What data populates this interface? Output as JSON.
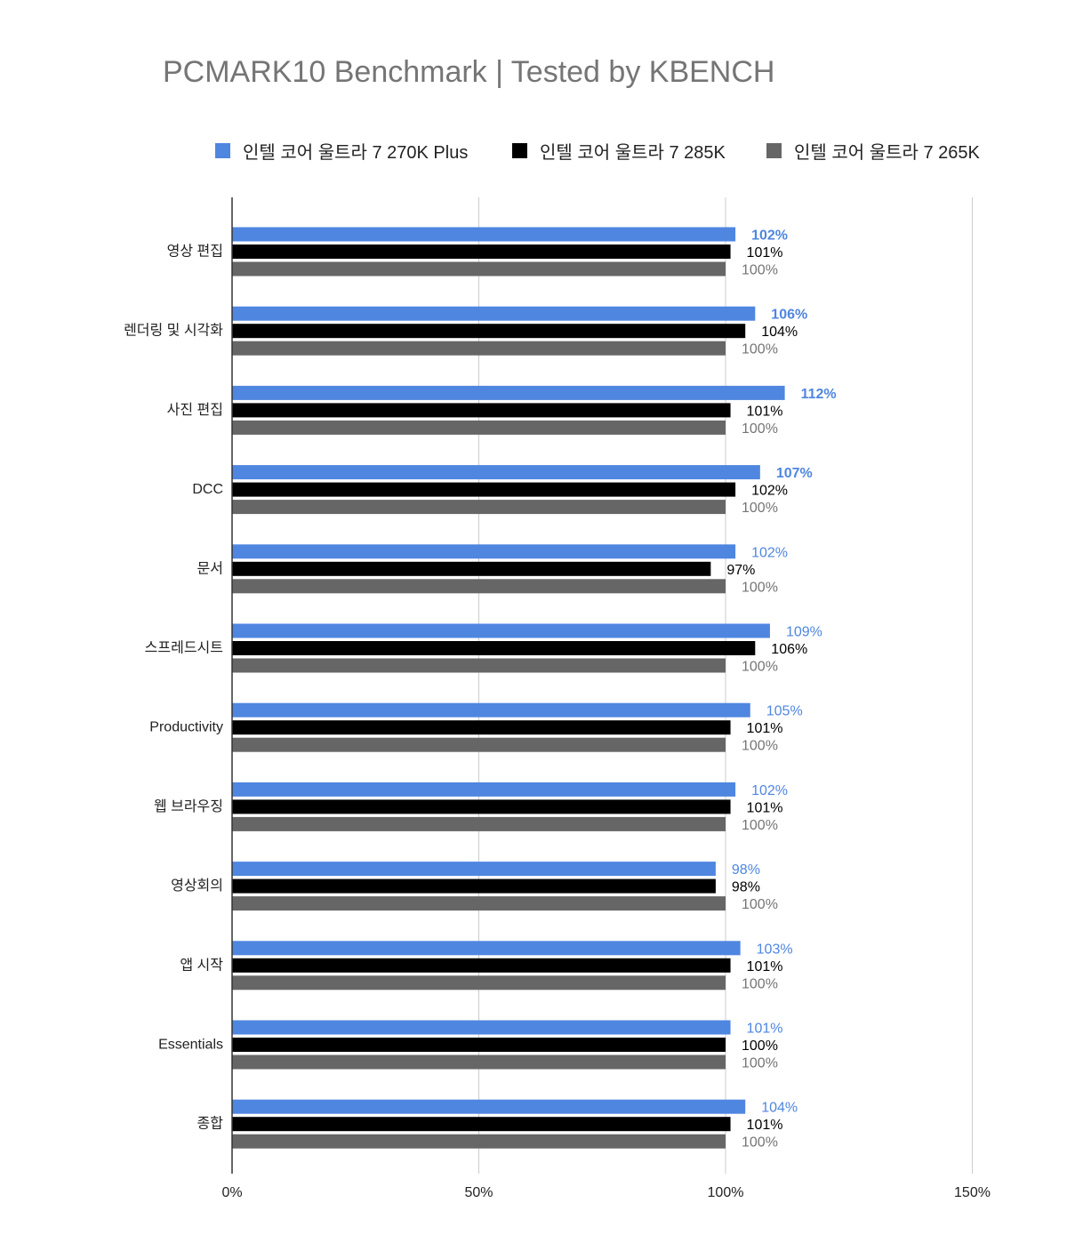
{
  "chart_data": {
    "type": "bar",
    "orientation": "horizontal",
    "title": "PCMARK10 Benchmark | Tested by KBENCH",
    "categories": [
      "영상 편집",
      "렌더링 및 시각화",
      "사진 편집",
      "DCC",
      "문서",
      "스프레드시트",
      "Productivity",
      "웹 브라우징",
      "영상회의",
      "앱 시작",
      "Essentials",
      "종합"
    ],
    "series": [
      {
        "name": "인텔 코어 울트라 7 270K Plus",
        "color": "#4f86e0",
        "values": [
          102,
          106,
          112,
          107,
          102,
          109,
          105,
          102,
          98,
          103,
          101,
          104
        ],
        "label_color": "#4f86e0"
      },
      {
        "name": "인텔 코어 울트라 7 285K",
        "color": "#000000",
        "values": [
          101,
          104,
          101,
          102,
          97,
          106,
          101,
          101,
          98,
          101,
          100,
          101
        ],
        "label_color": "#000000"
      },
      {
        "name": "인텔 코어 울트라 7 265K",
        "color": "#666666",
        "values": [
          100,
          100,
          100,
          100,
          100,
          100,
          100,
          100,
          100,
          100,
          100,
          100
        ],
        "label_color": "#757575"
      }
    ],
    "bold_labels_first_n": 4,
    "xlim": [
      0,
      150
    ],
    "xticks": [
      "0%",
      "50%",
      "100%",
      "150%"
    ],
    "xtick_values": [
      0,
      50,
      100,
      150
    ],
    "grid": true,
    "legend": "top",
    "xlabel": "",
    "ylabel": ""
  }
}
